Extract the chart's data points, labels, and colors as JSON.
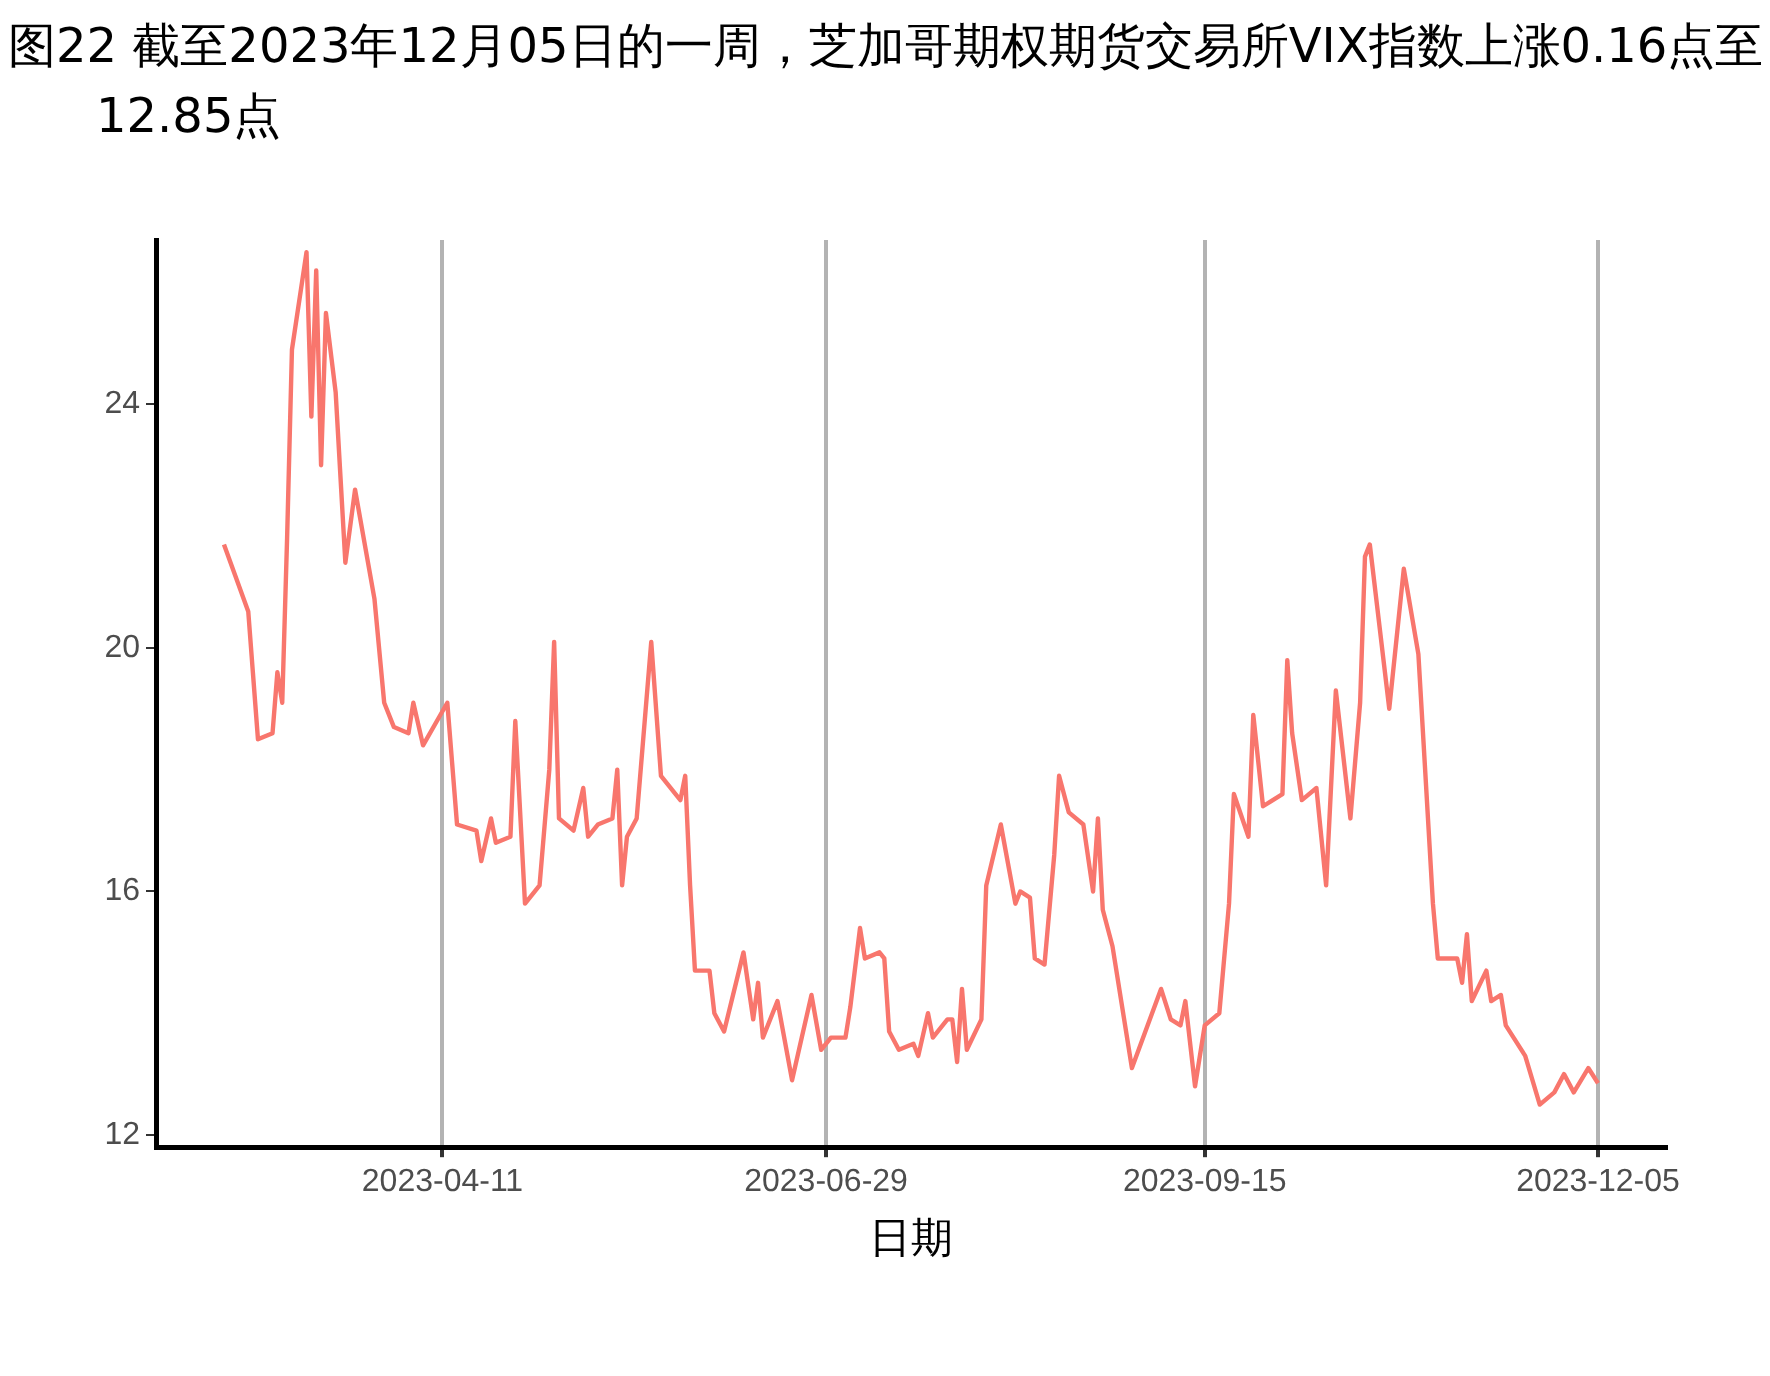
{
  "chart_data": {
    "type": "line",
    "title": "图22  截至2023年12月05日的一周，芝加哥期权期货交易所VIX指数上涨0.16点至12.85点",
    "xlabel": "日期",
    "x": [
      "2023-02-25",
      "2023-03-02",
      "2023-03-04",
      "2023-03-07",
      "2023-03-08",
      "2023-03-09",
      "2023-03-10",
      "2023-03-11",
      "2023-03-14",
      "2023-03-15",
      "2023-03-16",
      "2023-03-17",
      "2023-03-18",
      "2023-03-20",
      "2023-03-22",
      "2023-03-24",
      "2023-03-28",
      "2023-03-30",
      "2023-04-01",
      "2023-04-04",
      "2023-04-05",
      "2023-04-07",
      "2023-04-12",
      "2023-04-14",
      "2023-04-18",
      "2023-04-19",
      "2023-04-21",
      "2023-04-22",
      "2023-04-25",
      "2023-04-26",
      "2023-04-28",
      "2023-05-01",
      "2023-05-03",
      "2023-05-04",
      "2023-05-05",
      "2023-05-08",
      "2023-05-10",
      "2023-05-11",
      "2023-05-13",
      "2023-05-16",
      "2023-05-17",
      "2023-05-18",
      "2023-05-19",
      "2023-05-21",
      "2023-05-24",
      "2023-05-26",
      "2023-05-30",
      "2023-05-31",
      "2023-06-01",
      "2023-06-02",
      "2023-06-05",
      "2023-06-06",
      "2023-06-08",
      "2023-06-12",
      "2023-06-14",
      "2023-06-15",
      "2023-06-16",
      "2023-06-19",
      "2023-06-22",
      "2023-06-24",
      "2023-06-26",
      "2023-06-28",
      "2023-06-30",
      "2023-07-03",
      "2023-07-04",
      "2023-07-06",
      "2023-07-07",
      "2023-07-10",
      "2023-07-11",
      "2023-07-12",
      "2023-07-14",
      "2023-07-17",
      "2023-07-18",
      "2023-07-20",
      "2023-07-21",
      "2023-07-24",
      "2023-07-25",
      "2023-07-26",
      "2023-07-27",
      "2023-07-28",
      "2023-07-31",
      "2023-08-01",
      "2023-08-04",
      "2023-08-07",
      "2023-08-08",
      "2023-08-10",
      "2023-08-11",
      "2023-08-13",
      "2023-08-15",
      "2023-08-16",
      "2023-08-18",
      "2023-08-21",
      "2023-08-23",
      "2023-08-24",
      "2023-08-25",
      "2023-08-27",
      "2023-08-31",
      "2023-09-06",
      "2023-09-08",
      "2023-09-10",
      "2023-09-11",
      "2023-09-13",
      "2023-09-15",
      "2023-09-18",
      "2023-09-20",
      "2023-09-21",
      "2023-09-24",
      "2023-09-25",
      "2023-09-27",
      "2023-10-01",
      "2023-10-02",
      "2023-10-03",
      "2023-10-05",
      "2023-10-08",
      "2023-10-10",
      "2023-10-12",
      "2023-10-15",
      "2023-10-17",
      "2023-10-18",
      "2023-10-19",
      "2023-10-23",
      "2023-10-26",
      "2023-10-29",
      "2023-11-01",
      "2023-11-02",
      "2023-11-06",
      "2023-11-07",
      "2023-11-08",
      "2023-11-09",
      "2023-11-12",
      "2023-11-13",
      "2023-11-15",
      "2023-11-16",
      "2023-11-20",
      "2023-11-23",
      "2023-11-26",
      "2023-11-28",
      "2023-11-30",
      "2023-12-03",
      "2023-12-05"
    ],
    "series": [
      {
        "color": "#f8766d",
        "values": [
          21.7,
          20.6,
          18.5,
          18.6,
          19.6,
          19.1,
          21.8,
          24.9,
          26.5,
          23.8,
          26.2,
          23.0,
          25.5,
          24.2,
          21.4,
          22.6,
          20.8,
          19.1,
          18.7,
          18.6,
          19.1,
          18.4,
          19.1,
          17.1,
          17.0,
          16.5,
          17.2,
          16.8,
          16.9,
          18.8,
          15.8,
          16.1,
          18.0,
          20.1,
          17.2,
          17.0,
          17.7,
          16.9,
          17.1,
          17.2,
          18.0,
          16.1,
          16.9,
          17.2,
          20.1,
          17.9,
          17.5,
          17.9,
          16.1,
          14.7,
          14.7,
          14.0,
          13.7,
          15.0,
          13.9,
          14.5,
          13.6,
          14.2,
          12.9,
          13.6,
          14.3,
          13.4,
          13.6,
          13.6,
          14.1,
          15.4,
          14.9,
          15.0,
          14.9,
          13.7,
          13.4,
          13.5,
          13.3,
          14.0,
          13.6,
          13.9,
          13.9,
          13.2,
          14.4,
          13.4,
          13.9,
          16.1,
          17.1,
          15.8,
          16.0,
          15.9,
          14.9,
          14.8,
          16.6,
          17.9,
          17.3,
          17.1,
          16.0,
          17.2,
          15.7,
          15.1,
          13.1,
          14.4,
          13.9,
          13.8,
          14.2,
          12.8,
          13.8,
          14.0,
          15.8,
          17.6,
          16.9,
          18.9,
          17.4,
          17.6,
          19.8,
          18.6,
          17.5,
          17.7,
          16.1,
          19.3,
          17.2,
          19.1,
          21.5,
          21.7,
          19.0,
          21.3,
          19.9,
          15.8,
          14.9,
          14.9,
          14.5,
          15.3,
          14.2,
          14.7,
          14.2,
          14.3,
          13.8,
          13.3,
          12.5,
          12.7,
          13.0,
          12.7,
          13.1,
          12.85
        ]
      }
    ],
    "xlim": [
      "2023-02-11",
      "2023-12-19"
    ],
    "xticks": [
      "2023-04-11",
      "2023-06-29",
      "2023-09-15",
      "2023-12-05"
    ],
    "ylim": [
      11.8,
      26.7
    ],
    "yticks": [
      12,
      16,
      20,
      24
    ],
    "grid": "x",
    "legend": false,
    "marker": "none",
    "line_style": "solid"
  }
}
